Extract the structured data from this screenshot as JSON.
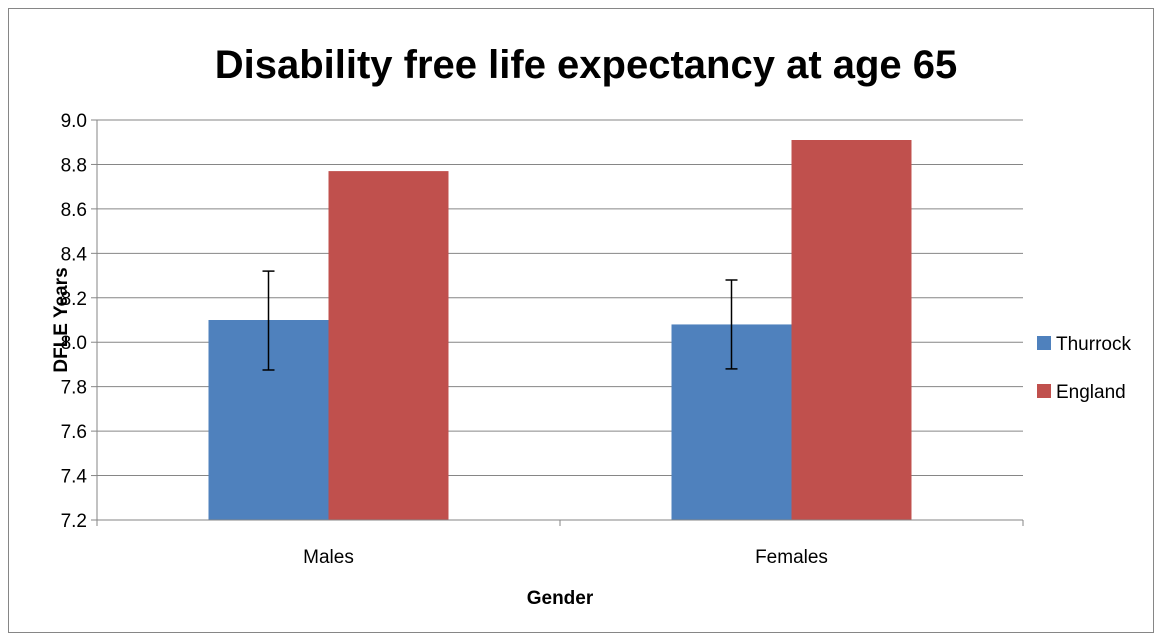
{
  "chart_data": {
    "type": "bar",
    "title": "Disability free life expectancy at age 65",
    "xlabel": "Gender",
    "ylabel": "DFLE Years",
    "categories": [
      "Males",
      "Females"
    ],
    "ylim": [
      7.2,
      9.0
    ],
    "yticks": [
      7.2,
      7.4,
      7.6,
      7.8,
      8.0,
      8.2,
      8.4,
      8.6,
      8.8,
      9.0
    ],
    "ytick_labels": [
      "7.2",
      "7.4",
      "7.6",
      "7.8",
      "8.0",
      "8.2",
      "8.4",
      "8.6",
      "8.8",
      "9.0"
    ],
    "grid": true,
    "legend_position": "right",
    "series": [
      {
        "name": "Thurrock",
        "color": "#4F81BD",
        "values": [
          8.1,
          8.08
        ],
        "error_low": [
          7.875,
          7.88
        ],
        "error_high": [
          8.32,
          8.28
        ]
      },
      {
        "name": "England",
        "color": "#C0504D",
        "values": [
          8.77,
          8.91
        ]
      }
    ]
  }
}
